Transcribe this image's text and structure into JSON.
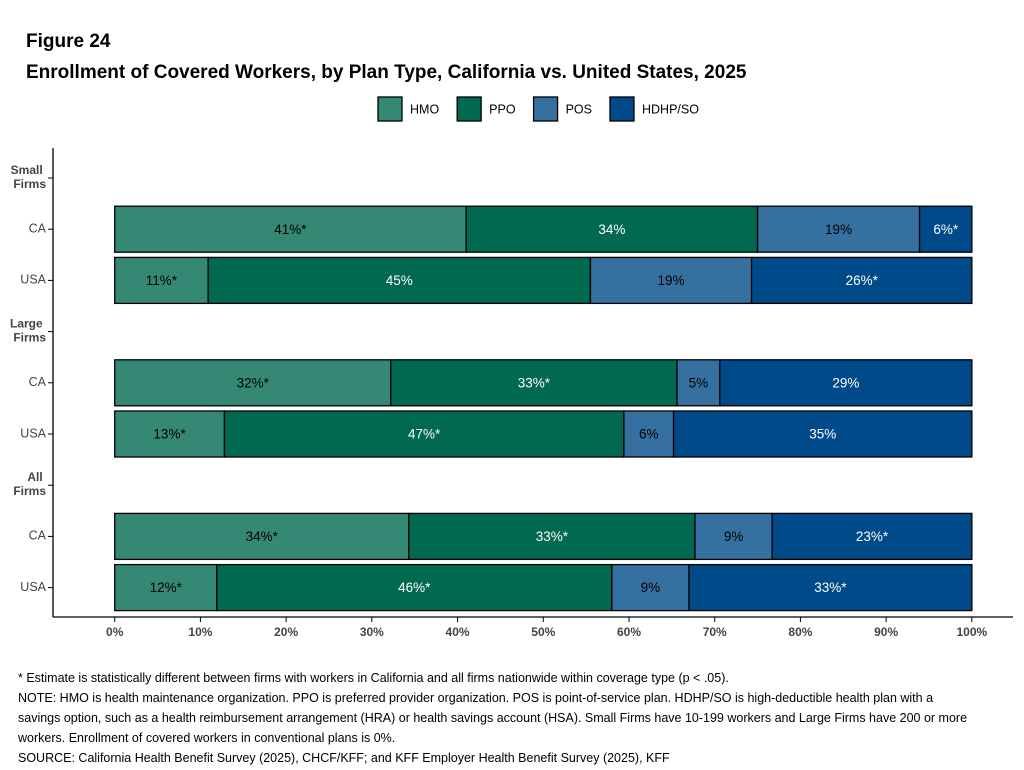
{
  "chart_data": {
    "type": "stacked-bar-horizontal",
    "figure_label": "Figure 24",
    "title": "Enrollment of Covered Workers, by Plan Type, California vs. United States, 2025",
    "categories": [
      "Small Firms",
      "CA",
      "USA",
      "Large Firms",
      "CA",
      "USA",
      "All Firms",
      "CA",
      "USA"
    ],
    "series": [
      {
        "name": "HMO",
        "color": "#358873",
        "label_color": "#000000",
        "values": [
          null,
          41,
          10.9,
          null,
          32.2,
          12.8,
          null,
          34.3,
          11.9
        ],
        "value_labels": [
          null,
          "41%*",
          "11%*",
          null,
          "32%*",
          "13%*",
          null,
          "34%*",
          "12%*"
        ]
      },
      {
        "name": "PPO",
        "color": "#00694f",
        "label_color": "#ffffff",
        "values": [
          null,
          34,
          44.6,
          null,
          33.4,
          46.6,
          null,
          33.4,
          46.1
        ],
        "value_labels": [
          null,
          "34%",
          "45%",
          null,
          "33%*",
          "47%*",
          null,
          "33%*",
          "46%*"
        ]
      },
      {
        "name": "POS",
        "color": "#3570a0",
        "label_color": "#000000",
        "values": [
          null,
          18.9,
          18.8,
          null,
          5,
          5.8,
          null,
          9,
          9
        ],
        "value_labels": [
          null,
          "19%",
          "19%",
          null,
          "5%",
          "6%",
          null,
          "9%",
          "9%"
        ]
      },
      {
        "name": "HDHP/SO",
        "color": "#004a8a",
        "label_color": "#ffffff",
        "values": [
          null,
          6.1,
          25.7,
          null,
          29.4,
          34.8,
          null,
          23.3,
          33
        ],
        "value_labels": [
          null,
          "6%*",
          "26%*",
          null,
          "29%",
          "35%",
          null,
          "23%*",
          "33%*"
        ]
      }
    ],
    "xlim": [
      -7.2,
      104.8
    ],
    "xticks": [
      {
        "value": 0,
        "label": "0%"
      },
      {
        "value": 10,
        "label": "10%"
      },
      {
        "value": 20,
        "label": "20%"
      },
      {
        "value": 30,
        "label": "30%"
      },
      {
        "value": 40,
        "label": "40%"
      },
      {
        "value": 50,
        "label": "50%"
      },
      {
        "value": 60,
        "label": "60%"
      },
      {
        "value": 70,
        "label": "70%"
      },
      {
        "value": 80,
        "label": "80%"
      },
      {
        "value": 90,
        "label": "90%"
      },
      {
        "value": 100,
        "label": "100%"
      }
    ],
    "notes": [
      "* Estimate is statistically different between firms with workers in California and all firms nationwide within coverage type (p < .05).",
      "NOTE: HMO is health maintenance organization. PPO is preferred provider organization. POS is point-of-service plan. HDHP/SO is high-deductible health plan with a savings option, such as a health reimbursement arrangement (HRA) or health savings account (HSA). Small Firms have 10-199 workers and Large Firms have 200 or more workers. Enrollment of covered workers in conventional plans is 0%.",
      "SOURCE: California Health Benefit Survey (2025), CHCF/KFF; and KFF Employer Health Benefit Survey (2025), KFF"
    ]
  }
}
